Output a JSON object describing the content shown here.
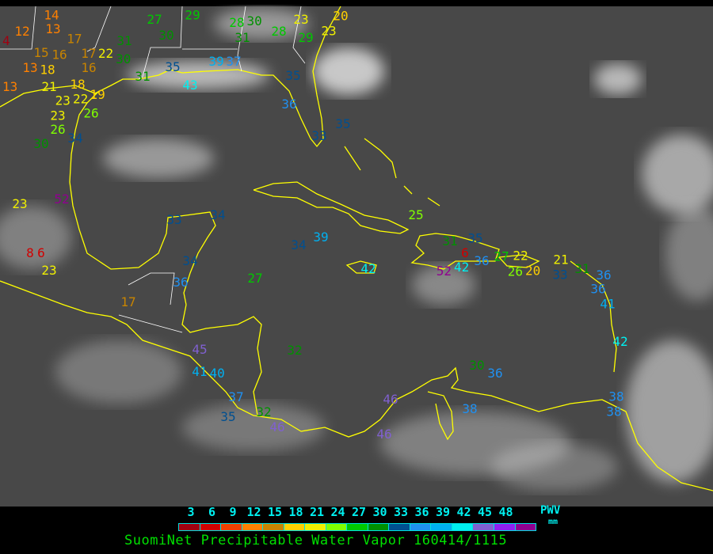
{
  "title": "SuomiNet Precipitable Water Vapor 160414/1115",
  "legend": {
    "label": "PWV",
    "unit": "mm",
    "ticks": [
      "3",
      "6",
      "9",
      "12",
      "15",
      "18",
      "21",
      "24",
      "27",
      "30",
      "33",
      "36",
      "39",
      "42",
      "45",
      "48"
    ],
    "colors": [
      "#a00010",
      "#d00000",
      "#f04000",
      "#ff8000",
      "#c88400",
      "#ffd000",
      "#f0f000",
      "#80ff00",
      "#00c800",
      "#009000",
      "#004f90",
      "#2090f0",
      "#00b0f0",
      "#00f0f0",
      "#8060d0",
      "#9020f0",
      "#900090"
    ]
  },
  "colors": {
    "background": "#484848",
    "coastline": "#ffff00",
    "borders": "#ffffff"
  },
  "stations": [
    {
      "v": "4"
    },
    {
      "v": "12"
    },
    {
      "v": "13"
    },
    {
      "v": "14"
    },
    {
      "v": "17"
    },
    {
      "v": "15"
    },
    {
      "v": "16"
    },
    {
      "v": "13"
    },
    {
      "v": "18"
    },
    {
      "v": "17"
    },
    {
      "v": "22"
    },
    {
      "v": "16"
    },
    {
      "v": "13"
    },
    {
      "v": "21"
    },
    {
      "v": "18"
    },
    {
      "v": "19"
    },
    {
      "v": "23"
    },
    {
      "v": "22"
    },
    {
      "v": "26"
    },
    {
      "v": "23"
    },
    {
      "v": "26"
    },
    {
      "v": "30"
    },
    {
      "v": "34"
    },
    {
      "v": "23"
    },
    {
      "v": "52"
    },
    {
      "v": "8"
    },
    {
      "v": "6"
    },
    {
      "v": "23"
    },
    {
      "v": "29"
    },
    {
      "v": "27"
    },
    {
      "v": "30"
    },
    {
      "v": "31"
    },
    {
      "v": "30"
    },
    {
      "v": "31"
    },
    {
      "v": "39"
    },
    {
      "v": "37"
    },
    {
      "v": "35"
    },
    {
      "v": "43"
    },
    {
      "v": "28"
    },
    {
      "v": "30"
    },
    {
      "v": "31"
    },
    {
      "v": "28"
    },
    {
      "v": "29"
    },
    {
      "v": "23"
    },
    {
      "v": "20"
    },
    {
      "v": "23"
    },
    {
      "v": "35"
    },
    {
      "v": "36"
    },
    {
      "v": "35"
    },
    {
      "v": "33"
    },
    {
      "v": "34"
    },
    {
      "v": "33"
    },
    {
      "v": "34"
    },
    {
      "v": "39"
    },
    {
      "v": "42"
    },
    {
      "v": "27"
    },
    {
      "v": "36"
    },
    {
      "v": "34"
    },
    {
      "v": "17"
    },
    {
      "v": "45"
    },
    {
      "v": "41"
    },
    {
      "v": "40"
    },
    {
      "v": "32"
    },
    {
      "v": "37"
    },
    {
      "v": "35"
    },
    {
      "v": "32"
    },
    {
      "v": "46"
    },
    {
      "v": "46"
    },
    {
      "v": "46"
    },
    {
      "v": "38"
    },
    {
      "v": "30"
    },
    {
      "v": "36"
    },
    {
      "v": "38"
    },
    {
      "v": "38"
    },
    {
      "v": "31"
    },
    {
      "v": "35"
    },
    {
      "v": "6"
    },
    {
      "v": "36"
    },
    {
      "v": "42"
    },
    {
      "v": "52"
    },
    {
      "v": "27"
    },
    {
      "v": "22"
    },
    {
      "v": "20"
    },
    {
      "v": "26"
    },
    {
      "v": "21"
    },
    {
      "v": "33"
    },
    {
      "v": "31"
    },
    {
      "v": "36"
    },
    {
      "v": "36"
    },
    {
      "v": "41"
    },
    {
      "v": "42"
    },
    {
      "v": "25"
    }
  ]
}
